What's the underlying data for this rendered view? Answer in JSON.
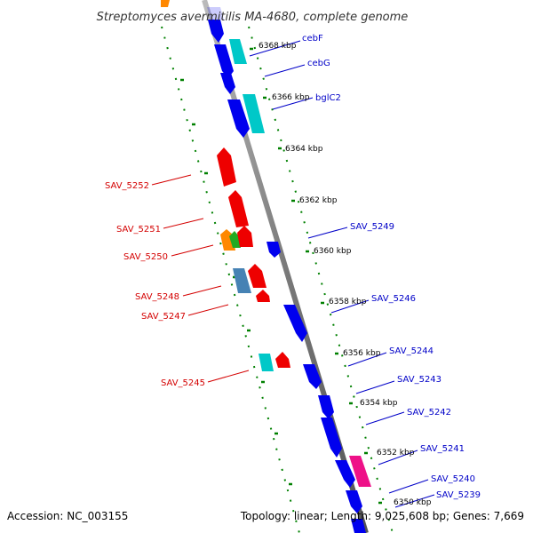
{
  "title": "Streptomyces avermitilis MA-4680, complete genome",
  "footer": {
    "accession": "Accession: NC_003155",
    "topology": "Topology: linear; Length: 9,025,608 bp; Genes: 7,669"
  },
  "colors": {
    "backbone": "#808080",
    "forward_gene": "#0000ee",
    "reverse_gene": "#ee0000",
    "tick": "#008000",
    "label_forward": "#0000c8",
    "label_reverse": "#d40000"
  },
  "scale_labels": [
    "6368 kbp",
    "6366 kbp",
    "6364 kbp",
    "6362 kbp",
    "6360 kbp",
    "6358 kbp",
    "6356 kbp",
    "6354 kbp",
    "6352 kbp",
    "6350 kbp"
  ],
  "forward_strand_genes": [
    {
      "label": "cebF",
      "color": "#00c8c8"
    },
    {
      "label": "cebG",
      "color": "#0000ee"
    },
    {
      "label": "bglC2",
      "color": "#00c8c8"
    },
    {
      "label": "SAV_5249",
      "color": "#0000ee"
    },
    {
      "label": "SAV_5246",
      "color": "#0000ee"
    },
    {
      "label": "SAV_5244",
      "color": "#0000ee"
    },
    {
      "label": "SAV_5243",
      "color": "#0000ee"
    },
    {
      "label": "SAV_5242",
      "color": "#0000ee"
    },
    {
      "label": "SAV_5241",
      "color": "#ee1188"
    },
    {
      "label": "SAV_5240",
      "color": "#0000ee"
    },
    {
      "label": "SAV_5239",
      "color": "#0000ee"
    }
  ],
  "reverse_strand_genes": [
    {
      "label": "SAV_5252",
      "color": "#ee0000"
    },
    {
      "label": "SAV_5251",
      "color": "#ee0000"
    },
    {
      "label": "SAV_5250",
      "color": "#ff8800"
    },
    {
      "label": "SAV_5248",
      "color": "#4682b4"
    },
    {
      "label": "SAV_5247",
      "color": "#ee0000"
    },
    {
      "label": "SAV_5245",
      "color": "#00c8c8"
    }
  ]
}
